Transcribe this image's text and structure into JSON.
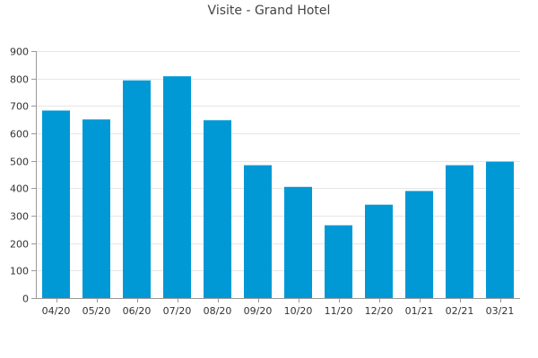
{
  "chart_data": {
    "type": "bar",
    "title": "Visite - Grand Hotel",
    "categories": [
      "04/20",
      "05/20",
      "06/20",
      "07/20",
      "08/20",
      "09/20",
      "10/20",
      "11/20",
      "12/20",
      "01/21",
      "02/21",
      "03/21"
    ],
    "values": [
      683,
      651,
      793,
      808,
      648,
      484,
      405,
      265,
      340,
      390,
      484,
      497
    ],
    "ylim": [
      0,
      900
    ],
    "yticks": [
      0,
      100,
      200,
      300,
      400,
      500,
      600,
      700,
      800,
      900
    ],
    "xlabel": "",
    "ylabel": "",
    "grid": true,
    "legend": "none",
    "colors": {
      "bar": "#0099d6",
      "grid": "#e6e6e6",
      "axis": "#999999",
      "text": "#333333",
      "title": "#444444"
    }
  }
}
